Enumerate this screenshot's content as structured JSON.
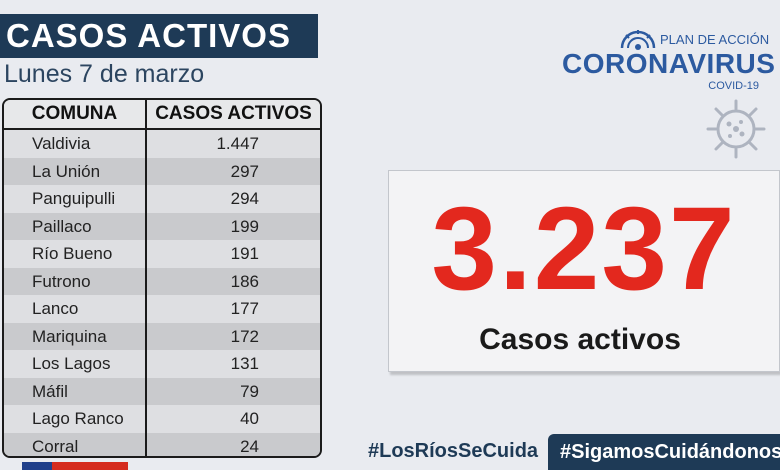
{
  "header": {
    "title": "CASOS ACTIVOS",
    "date": "Lunes 7 de marzo"
  },
  "table": {
    "headers": [
      "COMUNA",
      "CASOS ACTIVOS"
    ],
    "rows": [
      {
        "comuna": "Valdivia",
        "casos": "1.447"
      },
      {
        "comuna": "La Unión",
        "casos": "297"
      },
      {
        "comuna": "Panguipulli",
        "casos": "294"
      },
      {
        "comuna": "Paillaco",
        "casos": "199"
      },
      {
        "comuna": "Río Bueno",
        "casos": "191"
      },
      {
        "comuna": "Futrono",
        "casos": "186"
      },
      {
        "comuna": "Lanco",
        "casos": "177"
      },
      {
        "comuna": "Mariquina",
        "casos": "172"
      },
      {
        "comuna": "Los Lagos",
        "casos": "131"
      },
      {
        "comuna": "Máfil",
        "casos": "79"
      },
      {
        "comuna": "Lago Ranco",
        "casos": "40"
      },
      {
        "comuna": "Corral",
        "casos": "24"
      }
    ]
  },
  "logo": {
    "plan": "PLAN DE ACCIÓN",
    "name": "CORONAVIRUS",
    "sub": "COVID-19",
    "icon": "virus-icon"
  },
  "total": {
    "value": "3.237",
    "caption": "Casos activos"
  },
  "hashtags": {
    "primary": "#LosRíosSeCuida",
    "secondary": "#SigamosCuidándonos"
  },
  "colors": {
    "navy": "#1e3a56",
    "red": "#e3281e",
    "brand_blue": "#2c5aa0"
  }
}
